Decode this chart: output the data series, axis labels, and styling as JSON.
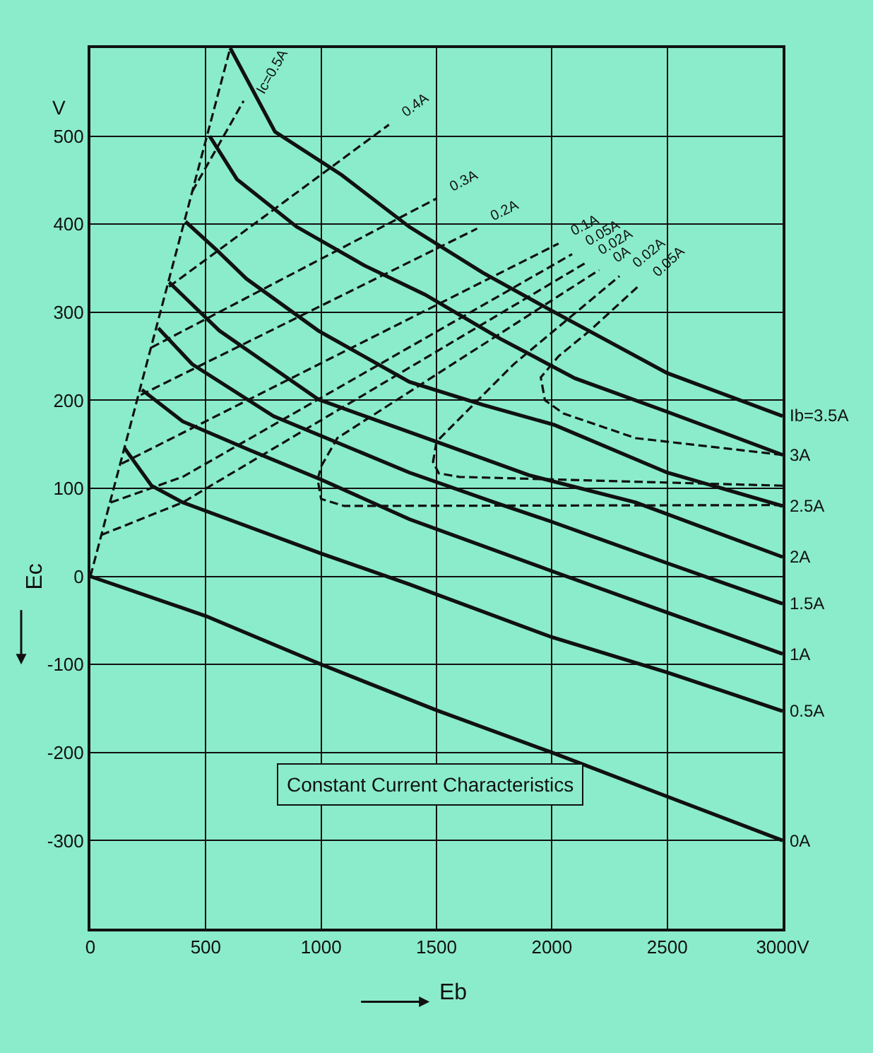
{
  "chart_data": {
    "type": "line",
    "title": "Constant Current Characteristics",
    "xlabel": "Eb",
    "ylabel": "Ec",
    "annotations": [
      "V"
    ],
    "xlim": [
      0,
      3000
    ],
    "ylim": [
      -400,
      600
    ],
    "xticks": [
      0,
      500,
      1000,
      1500,
      2000,
      2500,
      {
        "value": 3000,
        "label": "3000V"
      }
    ],
    "yticks": [
      -300,
      -200,
      -100,
      0,
      100,
      200,
      300,
      400,
      500
    ],
    "grid": true,
    "legend": false,
    "marker": "none",
    "series": [
      {
        "name": "Ib=3.5A",
        "color": "#111111",
        "line_style": "solid",
        "x": [
          606,
          800,
          1088,
          1382,
          1700,
          2011,
          2499,
          3000
        ],
        "values": [
          600,
          505,
          456,
          397,
          345,
          300,
          231,
          182
        ]
      },
      {
        "name": "3A",
        "color": "#111111",
        "line_style": "solid",
        "x": [
          517,
          635,
          894,
          1188,
          1450,
          1776,
          2100,
          2499,
          3000
        ],
        "values": [
          500,
          451,
          397,
          353,
          320,
          270,
          225,
          187,
          138
        ]
      },
      {
        "name": "2.5A",
        "color": "#111111",
        "line_style": "solid",
        "x": [
          412,
          550,
          676,
          988,
          1382,
          1700,
          2011,
          2499,
          3000
        ],
        "values": [
          403,
          370,
          338,
          279,
          221,
          195,
          172,
          118,
          80
        ]
      },
      {
        "name": "2A",
        "color": "#111111",
        "line_style": "solid",
        "x": [
          341,
          559,
          988,
          1499,
          1900,
          2364,
          3000
        ],
        "values": [
          334,
          279,
          201,
          153,
          115,
          84,
          22
        ]
      },
      {
        "name": "1.5A",
        "color": "#111111",
        "line_style": "solid",
        "x": [
          294,
          441,
          794,
          1382,
          1752,
          2000,
          2500,
          3000
        ],
        "values": [
          282,
          241,
          182,
          118,
          84,
          62,
          15,
          -31
        ]
      },
      {
        "name": "1A",
        "color": "#111111",
        "line_style": "solid",
        "x": [
          223,
          400,
          694,
          1000,
          1382,
          2000,
          2500,
          3000
        ],
        "values": [
          212,
          176,
          143,
          110,
          65,
          6,
          -41,
          -88
        ]
      },
      {
        "name": "0.5A",
        "color": "#111111",
        "line_style": "solid",
        "x": [
          147,
          265,
          400,
          700,
          1000,
          1382,
          2000,
          2500,
          3000
        ],
        "values": [
          146,
          103,
          84,
          55,
          26,
          -9,
          -69,
          -109,
          -153
        ]
      },
      {
        "name": "0A",
        "color": "#111111",
        "line_style": "solid",
        "x": [
          0,
          500,
          1000,
          1500,
          2000,
          2500,
          3000
        ],
        "values": [
          0,
          -45,
          -100,
          -152,
          -200,
          -250,
          -300
        ]
      },
      {
        "color": "#111111",
        "line_style": "dashed",
        "x": [
          0,
          606
        ],
        "values": [
          0,
          600
        ]
      },
      {
        "name": "Ic=0.5A",
        "color": "#111111",
        "line_style": "dashed",
        "x": [
          441,
          664
        ],
        "values": [
          437,
          540
        ]
      },
      {
        "name": "0.4A",
        "color": "#111111",
        "line_style": "dashed",
        "x": [
          341,
          1294
        ],
        "values": [
          329,
          513
        ]
      },
      {
        "name": "0.3A",
        "color": "#111111",
        "line_style": "dashed",
        "x": [
          265,
          1499
        ],
        "values": [
          260,
          429
        ]
      },
      {
        "name": "0.2A",
        "color": "#111111",
        "line_style": "dashed",
        "x": [
          218,
          1676
        ],
        "values": [
          206,
          395
        ]
      },
      {
        "name": "0.1A",
        "color": "#111111",
        "line_style": "dashed",
        "x": [
          135,
          2029
        ],
        "values": [
          128,
          378
        ]
      },
      {
        "name": "0.05A",
        "color": "#111111",
        "line_style": "dashed",
        "x": [
          88,
          400,
          2088
        ],
        "values": [
          84,
          113,
          366
        ]
      },
      {
        "name": "0.02A",
        "color": "#111111",
        "line_style": "dashed",
        "x": [
          47,
          400,
          2146
        ],
        "values": [
          47,
          84,
          356
        ]
      },
      {
        "name": "0A",
        "color": "#111111",
        "line_style": "dashed",
        "x": [
          3000,
          1100,
          1000,
          985,
          1000,
          1070,
          2205
        ],
        "values": [
          81,
          80,
          88,
          110,
          125,
          157,
          348
        ]
      },
      {
        "name": "0.02A",
        "color": "#111111",
        "line_style": "dashed",
        "x": [
          3000,
          1600,
          1510,
          1485,
          1500,
          1835,
          2293
        ],
        "values": [
          103,
          113,
          117,
          130,
          153,
          241,
          341
        ]
      },
      {
        "name": "0.05A",
        "color": "#111111",
        "line_style": "dashed",
        "x": [
          3000,
          2364,
          2050,
          1970,
          1952,
          2029,
          2164,
          2381
        ],
        "values": [
          138,
          157,
          185,
          200,
          226,
          250,
          279,
          331
        ]
      }
    ]
  }
}
